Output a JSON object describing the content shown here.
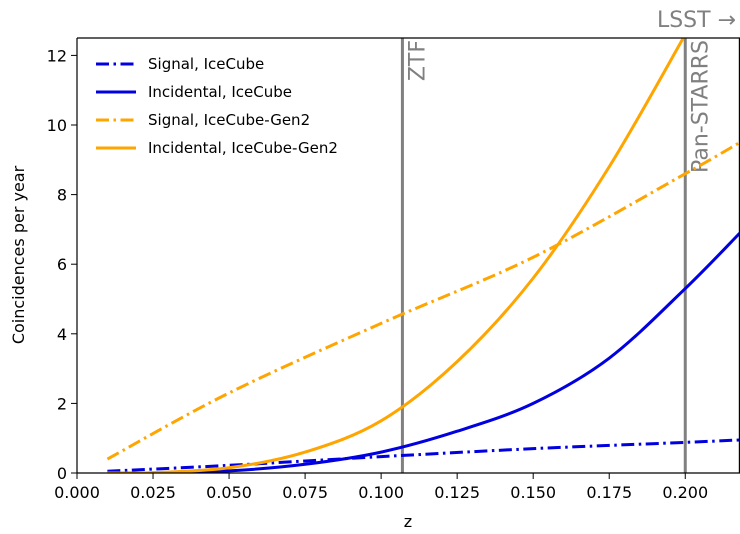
{
  "chart_data": {
    "type": "line",
    "xlabel": "z",
    "ylabel": "Coincidences per year",
    "xlim": [
      0.0,
      0.218
    ],
    "ylim": [
      0,
      12.5
    ],
    "xticks": [
      "0.000",
      "0.025",
      "0.050",
      "0.075",
      "0.100",
      "0.125",
      "0.150",
      "0.175",
      "0.200"
    ],
    "yticks": [
      "0",
      "2",
      "4",
      "6",
      "8",
      "10",
      "12"
    ],
    "legend_position": "upper-left",
    "grid": false,
    "series": [
      {
        "name": "Signal, IceCube",
        "color": "#0000e0",
        "style": "dashdot",
        "x": [
          0.01,
          0.05,
          0.1,
          0.15,
          0.2,
          0.218
        ],
        "y": [
          0.05,
          0.22,
          0.47,
          0.7,
          0.88,
          0.95
        ]
      },
      {
        "name": "Incidental, IceCube",
        "color": "#0000e0",
        "style": "solid",
        "x": [
          0.01,
          0.025,
          0.05,
          0.075,
          0.1,
          0.125,
          0.15,
          0.175,
          0.2,
          0.218
        ],
        "y": [
          0.0,
          0.004,
          0.06,
          0.25,
          0.6,
          1.2,
          2.0,
          3.3,
          5.3,
          6.9
        ]
      },
      {
        "name": "Signal, IceCube-Gen2",
        "color": "#ffa500",
        "style": "dashdot",
        "x": [
          0.01,
          0.05,
          0.1,
          0.15,
          0.2,
          0.218
        ],
        "y": [
          0.4,
          2.3,
          4.3,
          6.2,
          8.6,
          9.5
        ]
      },
      {
        "name": "Incidental, IceCube-Gen2",
        "color": "#ffa500",
        "style": "solid",
        "x": [
          0.01,
          0.025,
          0.05,
          0.075,
          0.1,
          0.125,
          0.15,
          0.175,
          0.2
        ],
        "y": [
          0.0,
          0.01,
          0.15,
          0.6,
          1.5,
          3.2,
          5.6,
          8.8,
          12.6
        ]
      }
    ],
    "vlines": [
      {
        "label": "ZTF",
        "x": 0.107,
        "color": "#808080"
      },
      {
        "label": "Pan-STARRS",
        "x": 0.2,
        "color": "#808080"
      }
    ],
    "annotation": {
      "text": "LSST →",
      "color": "#808080"
    }
  }
}
